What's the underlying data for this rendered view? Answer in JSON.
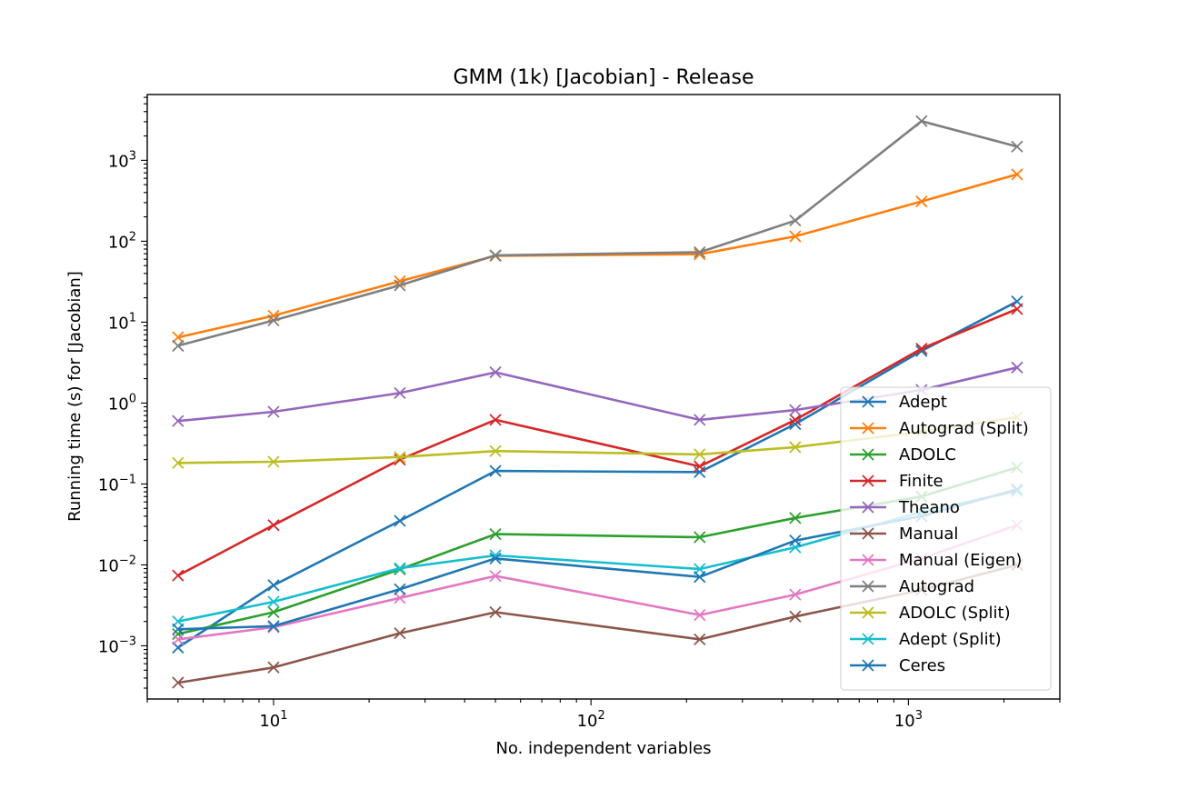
{
  "chart_data": {
    "type": "line",
    "title": "GMM (1k) [Jacobian] - Release",
    "xlabel": "No. independent variables",
    "ylabel": "Running time (s) for [Jacobian]",
    "xscale": "log",
    "yscale": "log",
    "xlim": [
      4,
      3000
    ],
    "ylim": [
      0.00022,
      6500
    ],
    "xticks": [
      {
        "value": 10,
        "base": "10",
        "exp": "1"
      },
      {
        "value": 100,
        "base": "10",
        "exp": "2"
      },
      {
        "value": 1000,
        "base": "10",
        "exp": "3"
      }
    ],
    "yticks": [
      {
        "value": 0.001,
        "base": "10",
        "exp": "−3"
      },
      {
        "value": 0.01,
        "base": "10",
        "exp": "−2"
      },
      {
        "value": 0.1,
        "base": "10",
        "exp": "−1"
      },
      {
        "value": 1,
        "base": "10",
        "exp": "0"
      },
      {
        "value": 10,
        "base": "10",
        "exp": "1"
      },
      {
        "value": 100,
        "base": "10",
        "exp": "2"
      },
      {
        "value": 1000,
        "base": "10",
        "exp": "3"
      }
    ],
    "grid": false,
    "legend_position": "lower-right",
    "marker": "x",
    "x": [
      5,
      10,
      25,
      50,
      220,
      440,
      1100,
      2200
    ],
    "series": [
      {
        "name": "Adept",
        "color": "#1f77b4",
        "values": [
          0.00095,
          0.0056,
          0.035,
          0.145,
          0.14,
          0.55,
          4.4,
          18
        ]
      },
      {
        "name": "Autograd (Split)",
        "color": "#ff7f0e",
        "values": [
          6.5,
          12,
          32,
          66,
          69,
          115,
          310,
          670
        ]
      },
      {
        "name": "ADOLC",
        "color": "#2ca02c",
        "values": [
          0.0014,
          0.0026,
          0.0088,
          0.024,
          0.022,
          0.038,
          0.07,
          0.16
        ]
      },
      {
        "name": "Finite",
        "color": "#d62728",
        "values": [
          0.0074,
          0.031,
          0.2,
          0.62,
          0.165,
          0.62,
          4.7,
          14.5
        ]
      },
      {
        "name": "Theano",
        "color": "#9467bd",
        "values": [
          0.6,
          0.78,
          1.33,
          2.4,
          0.62,
          0.82,
          1.45,
          2.75
        ]
      },
      {
        "name": "Manual",
        "color": "#8c564b",
        "values": [
          0.00035,
          0.00054,
          0.00143,
          0.0026,
          0.0012,
          0.0023,
          0.0049,
          0.01
        ]
      },
      {
        "name": "Manual (Eigen)",
        "color": "#e377c2",
        "values": [
          0.0012,
          0.0017,
          0.0039,
          0.0073,
          0.0024,
          0.0043,
          0.012,
          0.031
        ]
      },
      {
        "name": "Autograd",
        "color": "#7f7f7f",
        "values": [
          5.1,
          10.5,
          28.5,
          67,
          73,
          180,
          3050,
          1480
        ]
      },
      {
        "name": "ADOLC (Split)",
        "color": "#bcbd22",
        "values": [
          0.182,
          0.188,
          0.215,
          0.255,
          0.232,
          0.285,
          0.44,
          0.67
        ]
      },
      {
        "name": "Adept (Split)",
        "color": "#17becf",
        "values": [
          0.002,
          0.0035,
          0.0091,
          0.0131,
          0.0089,
          0.0165,
          0.045,
          0.082
        ]
      },
      {
        "name": "Ceres",
        "color": "#1f77b4",
        "values": [
          0.0016,
          0.00175,
          0.005,
          0.012,
          0.0071,
          0.02,
          0.04,
          0.086
        ]
      }
    ]
  }
}
